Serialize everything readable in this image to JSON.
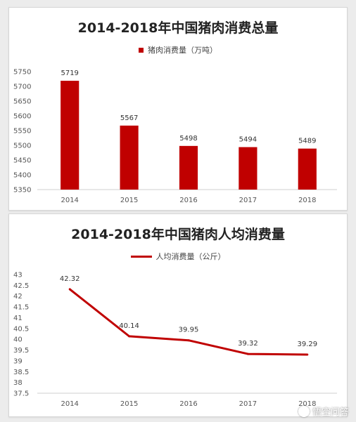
{
  "watermark": {
    "text": "悟空问答",
    "icon": "wukong-icon"
  },
  "chart_data": [
    {
      "type": "bar",
      "title": "2014-2018年中国猪肉消费总量",
      "legend": "猪肉消费量（万吨）",
      "categories": [
        "2014",
        "2015",
        "2016",
        "2017",
        "2018"
      ],
      "values": [
        5719,
        5567,
        5498,
        5494,
        5489
      ],
      "data_labels": [
        "5719",
        "5567",
        "5498",
        "5494",
        "5489"
      ],
      "yticks": [
        "5350",
        "5400",
        "5450",
        "5500",
        "5550",
        "5600",
        "5650",
        "5700",
        "5750"
      ],
      "ylim": [
        5350,
        5750
      ],
      "grid": false,
      "legend_position": "top",
      "color": "#c00000"
    },
    {
      "type": "line",
      "title": "2014-2018年中国猪肉人均消费量",
      "legend": "人均消费量（公斤）",
      "categories": [
        "2014",
        "2015",
        "2016",
        "2017",
        "2018"
      ],
      "values": [
        42.32,
        40.14,
        39.95,
        39.32,
        39.29
      ],
      "data_labels": [
        "42.32",
        "40.14",
        "39.95",
        "39.32",
        "39.29"
      ],
      "yticks": [
        "37.5",
        "38",
        "38.5",
        "39",
        "39.5",
        "40",
        "40.5",
        "41",
        "41.5",
        "42",
        "42.5",
        "43"
      ],
      "ylim": [
        37.5,
        43
      ],
      "grid": false,
      "legend_position": "top",
      "color": "#c00000"
    }
  ]
}
